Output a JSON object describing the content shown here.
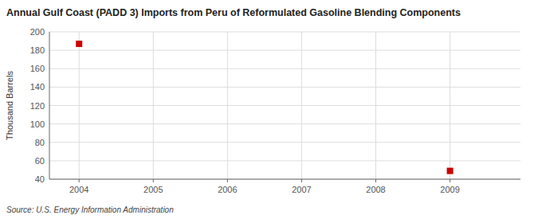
{
  "chart_data": {
    "type": "scatter",
    "title": "Annual Gulf Coast (PADD 3) Imports from Peru of Reformulated Gasoline Blending Components",
    "y_label": "Thousand Barrels",
    "annotations": [
      "Source: U.S. Energy Information Administration"
    ],
    "x": [
      2004,
      2009
    ],
    "values": [
      187,
      49
    ],
    "color": "#cc0000",
    "marker": "square",
    "xlim": [
      2003.6,
      2009.95
    ],
    "ylim": [
      40,
      200
    ],
    "xticks": [
      2004,
      2005,
      2006,
      2007,
      2008,
      2009
    ],
    "yticks": [
      40,
      60,
      80,
      100,
      120,
      140,
      160,
      180,
      200
    ],
    "grid": true
  }
}
